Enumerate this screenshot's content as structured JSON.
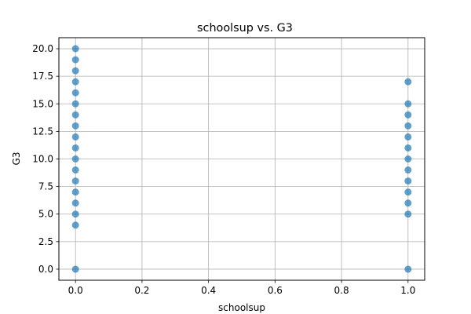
{
  "chart_data": {
    "type": "scatter",
    "title": "schoolsup vs. G3",
    "xlabel": "schoolsup",
    "ylabel": "G3",
    "xlim": [
      -0.05,
      1.05
    ],
    "ylim": [
      -1.0,
      21.0
    ],
    "xticks": [
      0.0,
      0.2,
      0.4,
      0.6,
      0.8,
      1.0
    ],
    "xtick_labels": [
      "0.0",
      "0.2",
      "0.4",
      "0.6",
      "0.8",
      "1.0"
    ],
    "yticks": [
      0.0,
      2.5,
      5.0,
      7.5,
      10.0,
      12.5,
      15.0,
      17.5,
      20.0
    ],
    "ytick_labels": [
      "0.0",
      "2.5",
      "5.0",
      "7.5",
      "10.0",
      "12.5",
      "15.0",
      "17.5",
      "20.0"
    ],
    "grid": true,
    "marker_color": "#1f77b4",
    "series": [
      {
        "points": [
          {
            "x": 0,
            "y": 0
          },
          {
            "x": 0,
            "y": 4
          },
          {
            "x": 0,
            "y": 5
          },
          {
            "x": 0,
            "y": 6
          },
          {
            "x": 0,
            "y": 7
          },
          {
            "x": 0,
            "y": 8
          },
          {
            "x": 0,
            "y": 9
          },
          {
            "x": 0,
            "y": 10
          },
          {
            "x": 0,
            "y": 11
          },
          {
            "x": 0,
            "y": 12
          },
          {
            "x": 0,
            "y": 13
          },
          {
            "x": 0,
            "y": 14
          },
          {
            "x": 0,
            "y": 15
          },
          {
            "x": 0,
            "y": 16
          },
          {
            "x": 0,
            "y": 17
          },
          {
            "x": 0,
            "y": 18
          },
          {
            "x": 0,
            "y": 19
          },
          {
            "x": 0,
            "y": 20
          },
          {
            "x": 1,
            "y": 0
          },
          {
            "x": 1,
            "y": 5
          },
          {
            "x": 1,
            "y": 6
          },
          {
            "x": 1,
            "y": 7
          },
          {
            "x": 1,
            "y": 8
          },
          {
            "x": 1,
            "y": 9
          },
          {
            "x": 1,
            "y": 10
          },
          {
            "x": 1,
            "y": 11
          },
          {
            "x": 1,
            "y": 12
          },
          {
            "x": 1,
            "y": 13
          },
          {
            "x": 1,
            "y": 14
          },
          {
            "x": 1,
            "y": 15
          },
          {
            "x": 1,
            "y": 17
          }
        ]
      }
    ]
  }
}
